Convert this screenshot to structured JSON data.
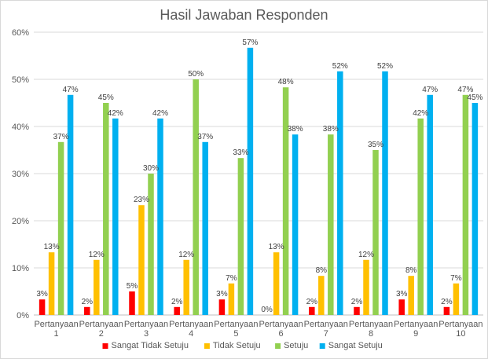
{
  "chart_data": {
    "type": "bar",
    "title": "Hasil Jawaban Responden",
    "categories": [
      [
        "Pertanyaan",
        "1"
      ],
      [
        "Pertanyaan",
        "2"
      ],
      [
        "Pertanyaan",
        "3"
      ],
      [
        "Pertanyaan",
        "4"
      ],
      [
        "Pertanyaan",
        "5"
      ],
      [
        "Pertanyaan",
        "6"
      ],
      [
        "Pertanyaan",
        "7"
      ],
      [
        "Pertanyaan",
        "8"
      ],
      [
        "Pertanyaan",
        "9"
      ],
      [
        "Pertanyaan",
        "10"
      ]
    ],
    "ylim": [
      0,
      60
    ],
    "yticks": [
      0,
      10,
      20,
      30,
      40,
      50,
      60
    ],
    "ytick_labels": [
      "0%",
      "10%",
      "20%",
      "30%",
      "40%",
      "50%",
      "60%"
    ],
    "grid": true,
    "legend_position": "bottom",
    "series": [
      {
        "name": "Sangat Tidak Setuju",
        "color": "#ff0000",
        "values": [
          3.3,
          1.7,
          5,
          1.7,
          3.3,
          0,
          1.7,
          1.7,
          3.3,
          1.7
        ],
        "labels": [
          "3%",
          "2%",
          "5%",
          "2%",
          "3%",
          "0%",
          "2%",
          "2%",
          "3%",
          "2%"
        ]
      },
      {
        "name": "Tidak Setuju",
        "color": "#ffc000",
        "values": [
          13.3,
          11.7,
          23.3,
          11.7,
          6.7,
          13.3,
          8.3,
          11.7,
          8.3,
          6.7
        ],
        "labels": [
          "13%",
          "12%",
          "23%",
          "12%",
          "7%",
          "13%",
          "8%",
          "12%",
          "8%",
          "7%"
        ]
      },
      {
        "name": "Setuju",
        "color": "#92d050",
        "values": [
          36.7,
          45,
          30,
          50,
          33.3,
          48.3,
          38.3,
          35,
          41.7,
          46.7
        ],
        "labels": [
          "37%",
          "45%",
          "30%",
          "50%",
          "33%",
          "48%",
          "38%",
          "35%",
          "42%",
          "47%"
        ]
      },
      {
        "name": "Sangat Setuju",
        "color": "#00b0f0",
        "values": [
          46.7,
          41.7,
          41.7,
          36.7,
          56.7,
          38.3,
          51.7,
          51.7,
          46.7,
          45
        ],
        "labels": [
          "47%",
          "42%",
          "42%",
          "37%",
          "57%",
          "38%",
          "52%",
          "52%",
          "47%",
          "45%"
        ]
      }
    ]
  }
}
